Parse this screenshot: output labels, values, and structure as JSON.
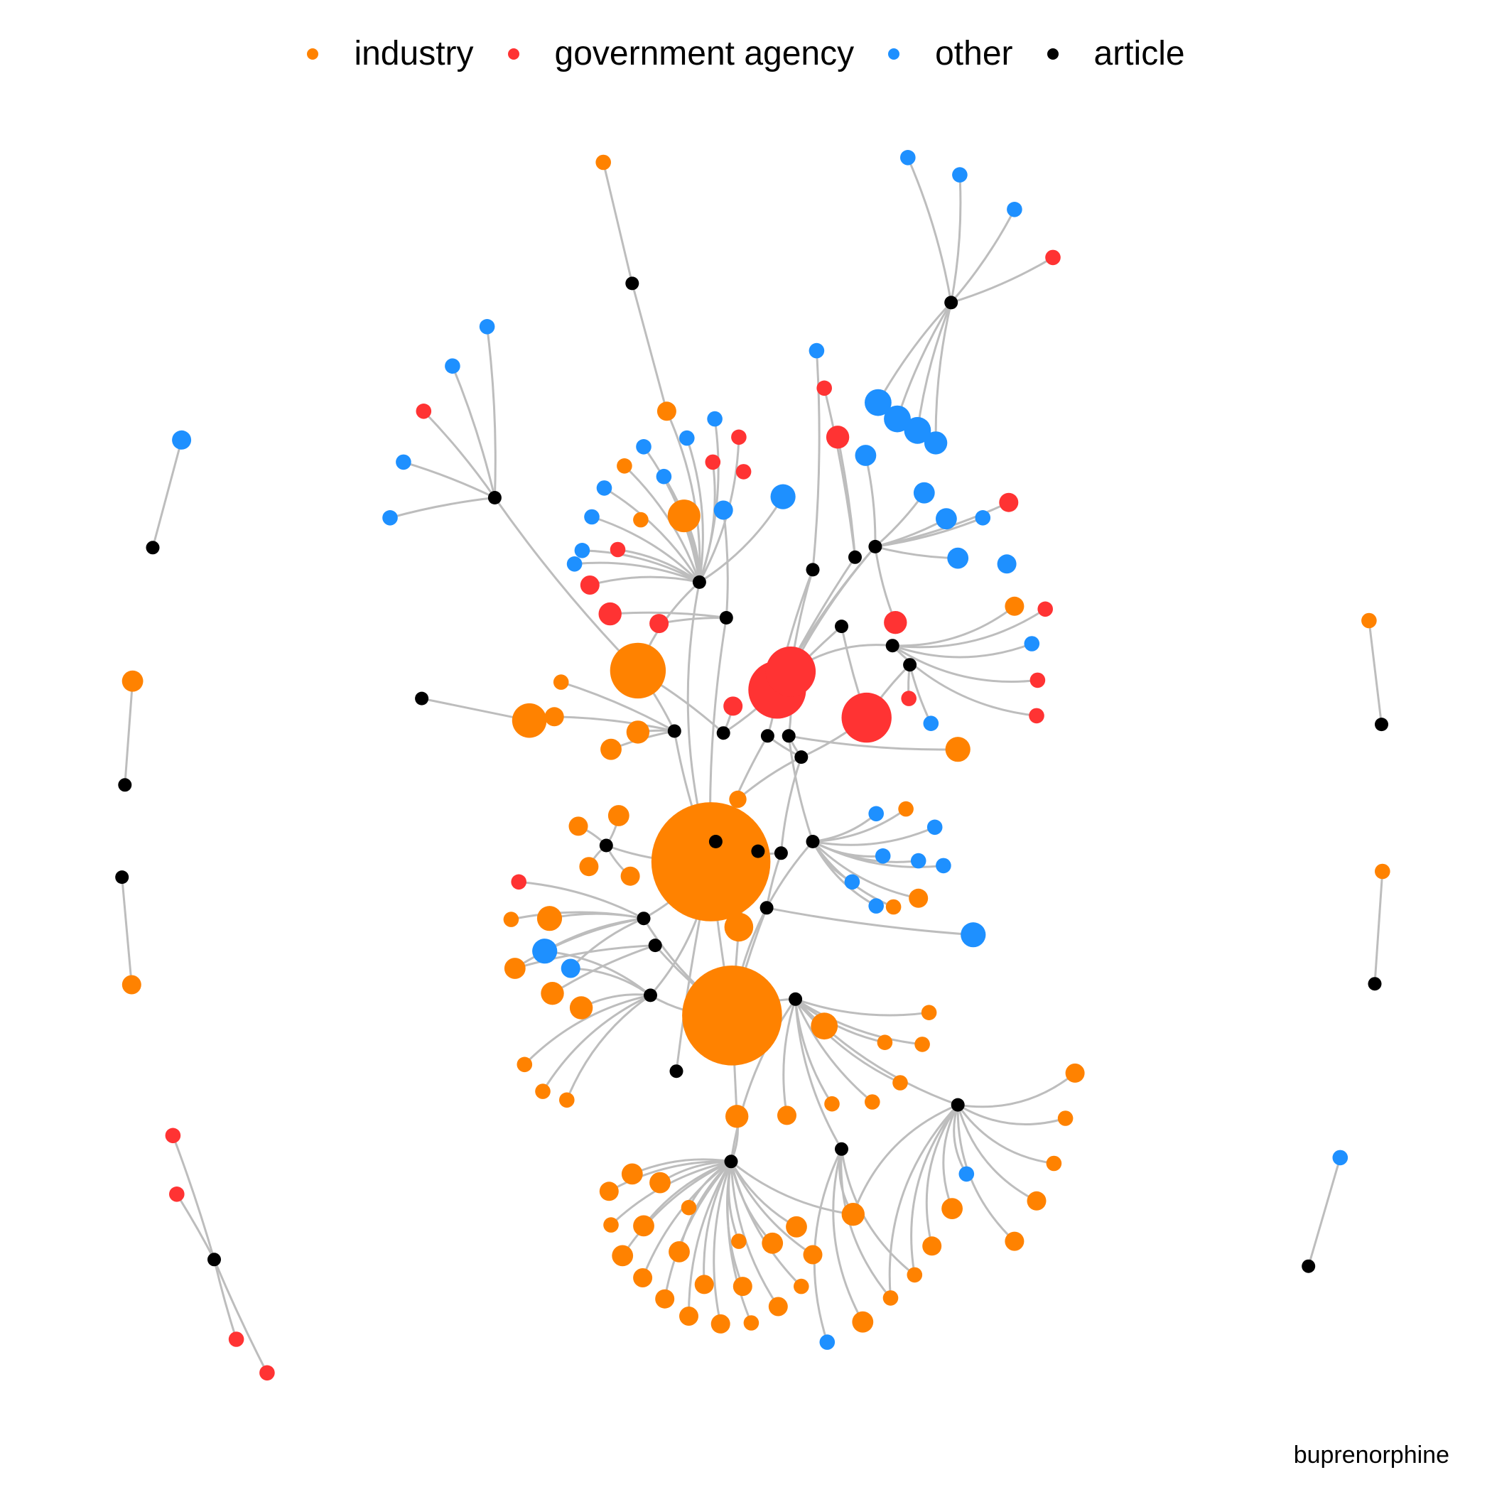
{
  "legend": {
    "items": [
      {
        "key": "industry",
        "label": "industry",
        "color": "#ff8200"
      },
      {
        "key": "government",
        "label": "government agency",
        "color": "#ff3333"
      },
      {
        "key": "other",
        "label": "other",
        "color": "#1e90ff"
      },
      {
        "key": "article",
        "label": "article",
        "color": "#000000"
      }
    ]
  },
  "caption": "buprenorphine",
  "colors": {
    "edge": "#bdbdbd"
  }
}
